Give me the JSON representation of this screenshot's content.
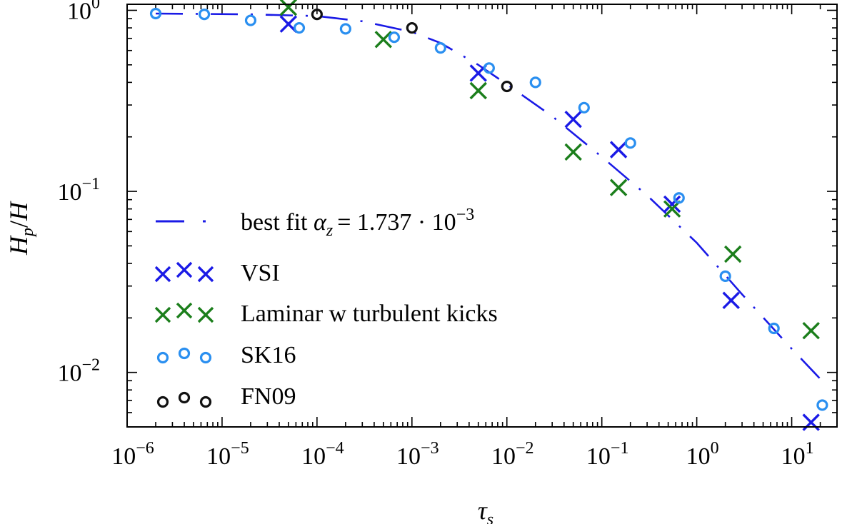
{
  "chart_data": {
    "type": "scatter",
    "xscale": "log",
    "yscale": "log",
    "xlim": [
      1e-06,
      30
    ],
    "ylim": [
      0.005,
      1.08
    ],
    "xlabel": {
      "base": "τ",
      "sub": "s"
    },
    "ylabel": {
      "a": "H",
      "a_sub": "p",
      "sep": "/",
      "b": "H"
    },
    "x_ticks": [
      {
        "value": 1e-06,
        "base": "10",
        "exp": "−6"
      },
      {
        "value": 1e-05,
        "base": "10",
        "exp": "−5"
      },
      {
        "value": 0.0001,
        "base": "10",
        "exp": "−4"
      },
      {
        "value": 0.001,
        "base": "10",
        "exp": "−3"
      },
      {
        "value": 0.01,
        "base": "10",
        "exp": "−2"
      },
      {
        "value": 0.1,
        "base": "10",
        "exp": "−1"
      },
      {
        "value": 1,
        "base": "10",
        "exp": "0"
      },
      {
        "value": 10,
        "base": "10",
        "exp": "1"
      }
    ],
    "y_ticks": [
      {
        "value": 0.01,
        "base": "10",
        "exp": "−2"
      },
      {
        "value": 0.1,
        "base": "10",
        "exp": "−1"
      },
      {
        "value": 1,
        "base": "10",
        "exp": "0"
      }
    ],
    "fit": {
      "name": "best fit",
      "symbol": "α",
      "symbol_sub": "z",
      "value_text": "= 1.737 · 10",
      "value_exp": "−3",
      "color": "#1a1ae6",
      "points": [
        {
          "x": 2e-06,
          "y": 0.96
        },
        {
          "x": 2e-05,
          "y": 0.95
        },
        {
          "x": 0.0001,
          "y": 0.93
        },
        {
          "x": 0.0003,
          "y": 0.87
        },
        {
          "x": 0.001,
          "y": 0.76
        },
        {
          "x": 0.002,
          "y": 0.66
        },
        {
          "x": 0.005,
          "y": 0.5
        },
        {
          "x": 0.01,
          "y": 0.39
        },
        {
          "x": 0.03,
          "y": 0.26
        },
        {
          "x": 0.1,
          "y": 0.155
        },
        {
          "x": 0.3,
          "y": 0.095
        },
        {
          "x": 1,
          "y": 0.052
        },
        {
          "x": 3,
          "y": 0.027
        },
        {
          "x": 10,
          "y": 0.0135
        },
        {
          "x": 20,
          "y": 0.0092
        }
      ]
    },
    "series": [
      {
        "name": "VSI",
        "marker": "x",
        "color": "#1a1ae6",
        "points": [
          {
            "x": 5e-05,
            "y": 0.84
          },
          {
            "x": 0.005,
            "y": 0.45
          },
          {
            "x": 0.05,
            "y": 0.25
          },
          {
            "x": 0.15,
            "y": 0.17
          },
          {
            "x": 0.55,
            "y": 0.085
          },
          {
            "x": 2.3,
            "y": 0.025
          },
          {
            "x": 16,
            "y": 0.0053
          }
        ]
      },
      {
        "name": "Laminar w turbulent kicks",
        "marker": "x",
        "color": "#1b7e1b",
        "points": [
          {
            "x": 5e-05,
            "y": 1.04
          },
          {
            "x": 0.0005,
            "y": 0.69
          },
          {
            "x": 0.005,
            "y": 0.36
          },
          {
            "x": 0.05,
            "y": 0.165
          },
          {
            "x": 0.15,
            "y": 0.105
          },
          {
            "x": 0.55,
            "y": 0.08
          },
          {
            "x": 2.4,
            "y": 0.045
          },
          {
            "x": 16,
            "y": 0.017
          }
        ]
      },
      {
        "name": "SK16",
        "marker": "o",
        "color": "#2a8ff0",
        "points": [
          {
            "x": 2e-06,
            "y": 0.96
          },
          {
            "x": 6.5e-06,
            "y": 0.95
          },
          {
            "x": 2e-05,
            "y": 0.88
          },
          {
            "x": 6.5e-05,
            "y": 0.8
          },
          {
            "x": 0.0002,
            "y": 0.79
          },
          {
            "x": 0.00065,
            "y": 0.71
          },
          {
            "x": 0.002,
            "y": 0.62
          },
          {
            "x": 0.0065,
            "y": 0.48
          },
          {
            "x": 0.02,
            "y": 0.4
          },
          {
            "x": 0.065,
            "y": 0.29
          },
          {
            "x": 0.2,
            "y": 0.185
          },
          {
            "x": 0.65,
            "y": 0.092
          },
          {
            "x": 2,
            "y": 0.034
          },
          {
            "x": 6.5,
            "y": 0.0175
          },
          {
            "x": 21,
            "y": 0.0066
          }
        ]
      },
      {
        "name": "FN09",
        "marker": "o",
        "color": "#111111",
        "points": [
          {
            "x": 0.0001,
            "y": 0.95
          },
          {
            "x": 0.001,
            "y": 0.8
          },
          {
            "x": 0.01,
            "y": 0.38
          }
        ]
      }
    ],
    "legend_position": "lower-left"
  }
}
